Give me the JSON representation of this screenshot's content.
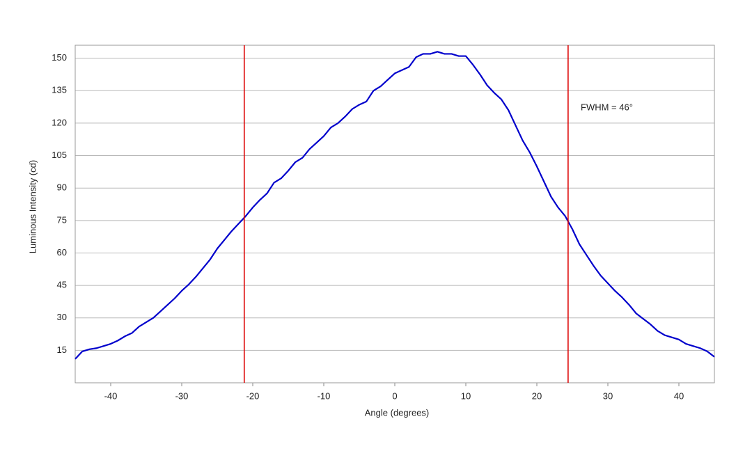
{
  "chart_data": {
    "type": "line",
    "xlabel": "Angle (degrees)",
    "ylabel": "Luminous Intensity (cd)",
    "x": [
      -45,
      -44,
      -43,
      -42,
      -41,
      -40,
      -39,
      -38,
      -37,
      -36,
      -35,
      -34,
      -33,
      -32,
      -31,
      -30,
      -29,
      -28,
      -27,
      -26,
      -25,
      -24,
      -23,
      -22,
      -21,
      -20,
      -19,
      -18,
      -17,
      -16,
      -15,
      -14,
      -13,
      -12,
      -11,
      -10,
      -9,
      -8,
      -7,
      -6,
      -5,
      -4,
      -3,
      -2,
      -1,
      0,
      1,
      2,
      3,
      4,
      5,
      6,
      7,
      8,
      9,
      10,
      11,
      12,
      13,
      14,
      15,
      16,
      17,
      18,
      19,
      20,
      21,
      22,
      23,
      24,
      25,
      26,
      27,
      28,
      29,
      30,
      31,
      32,
      33,
      34,
      35,
      36,
      37,
      38,
      39,
      40,
      41,
      42,
      43,
      44,
      45
    ],
    "values": [
      11,
      14.5,
      15.5,
      16,
      17,
      18,
      19.5,
      21.5,
      23,
      26,
      28,
      30,
      33,
      36,
      39,
      42.5,
      45.5,
      49,
      53,
      57,
      62,
      66,
      70,
      73.5,
      77,
      81,
      84.5,
      87.5,
      92.5,
      94.5,
      98,
      102,
      104,
      108,
      111,
      114,
      118,
      120,
      123,
      126.5,
      128.5,
      130,
      135,
      137,
      140,
      143,
      144.5,
      146,
      150.5,
      152,
      152,
      153,
      152,
      152,
      151,
      151,
      147,
      142.5,
      137.5,
      134,
      131,
      126,
      119,
      112,
      106.5,
      100,
      93,
      86,
      81,
      77,
      71,
      64,
      59,
      54,
      49.5,
      46,
      42.5,
      39.5,
      36,
      32,
      29.5,
      27,
      24,
      22,
      21,
      20,
      18,
      17,
      16,
      14.5,
      12
    ],
    "color": "#0000cc",
    "vlines": [
      -21.2,
      24.4
    ],
    "vline_color": "#dd0000",
    "annotation": "FWHM = 46°",
    "xlim": [
      -45,
      45
    ],
    "xticks": [
      -40,
      -30,
      -20,
      -10,
      0,
      10,
      20,
      30,
      40
    ],
    "ylim": [
      0,
      156
    ],
    "yticks": [
      15,
      30,
      45,
      60,
      75,
      90,
      105,
      120,
      135,
      150
    ],
    "grid": true
  }
}
